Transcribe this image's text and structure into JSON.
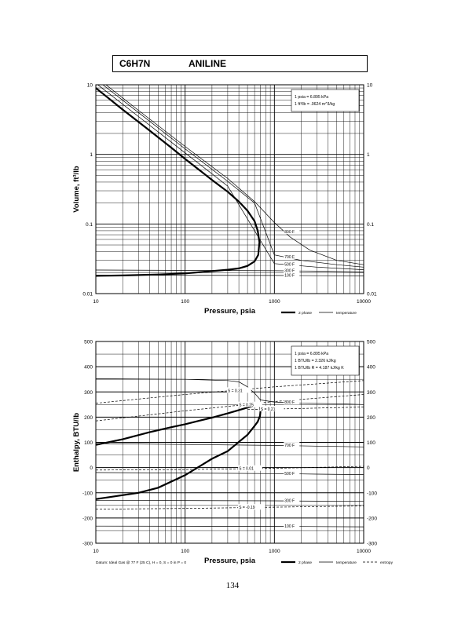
{
  "header": {
    "formula": "C6H7N",
    "name": "ANILINE"
  },
  "page_number": "134",
  "chart_data": [
    {
      "type": "line",
      "xscale": "log",
      "yscale": "log",
      "xlim": [
        10,
        10000
      ],
      "ylim": [
        0.01,
        10
      ],
      "xlabel": "Pressure,  psia",
      "ylabel": "Volume, ft^3/lb",
      "x_ticks": [
        "10",
        "100",
        "1000",
        "10000"
      ],
      "y_ticks": [
        "0.01",
        "0.1",
        "1",
        "10"
      ],
      "grid": true,
      "info_box": [
        "1 psia  =  6.895 kPa",
        "1 ft^3/lb  =  .0624 m^3/kg"
      ],
      "legend": {
        "two_phase": "2 phase",
        "temperature": "temperature"
      },
      "two_phase_curve": {
        "name": "2 phase",
        "x": [
          10,
          20,
          40,
          70,
          100,
          200,
          300,
          400,
          500,
          600,
          650,
          680,
          660,
          600,
          500,
          400,
          300,
          200,
          100,
          50,
          20,
          10
        ],
        "y": [
          9,
          4.4,
          2.2,
          1.25,
          0.86,
          0.43,
          0.29,
          0.21,
          0.155,
          0.11,
          0.08,
          0.055,
          0.036,
          0.029,
          0.025,
          0.023,
          0.022,
          0.021,
          0.0195,
          0.0188,
          0.0182,
          0.018
        ]
      },
      "temperature_curves": [
        {
          "label": "800 F",
          "x": [
            10,
            30,
            100,
            300,
            600,
            1000,
            1500,
            2500,
            5000,
            10000
          ],
          "y": [
            13,
            4.3,
            1.3,
            0.45,
            0.21,
            0.105,
            0.065,
            0.042,
            0.03,
            0.026
          ]
        },
        {
          "label": "700 F",
          "x": [
            10,
            30,
            100,
            300,
            600,
            1000,
            2000,
            5000,
            10000
          ],
          "y": [
            12,
            4,
            1.2,
            0.41,
            0.2,
            0.036,
            0.03,
            0.026,
            0.024
          ]
        },
        {
          "label": "500 F",
          "x": [
            10,
            30,
            100,
            300,
            1000,
            3000,
            10000
          ],
          "y": [
            10.5,
            3.5,
            1.05,
            0.35,
            0.027,
            0.024,
            0.022
          ]
        },
        {
          "label": "300 F",
          "x": [
            10,
            1000,
            3000,
            10000
          ],
          "y": [
            0.0218,
            0.0213,
            0.021,
            0.0205
          ]
        },
        {
          "label": "100 F",
          "x": [
            10,
            1000,
            3000,
            10000
          ],
          "y": [
            0.0184,
            0.0182,
            0.0181,
            0.018
          ]
        }
      ]
    },
    {
      "type": "line",
      "xscale": "log",
      "yscale": "linear",
      "xlim": [
        10,
        10000
      ],
      "ylim": [
        -300,
        500
      ],
      "xlabel": "Pressure,  psia",
      "ylabel": "Enthalpy, BTU/lb",
      "x_ticks": [
        "10",
        "100",
        "1000",
        "10000"
      ],
      "y_ticks": [
        "-300",
        "-200",
        "-100",
        "0",
        "100",
        "200",
        "300",
        "400",
        "500"
      ],
      "grid": true,
      "info_box": [
        "1 psia  =  6.895 kPa",
        "1 BTU/lb  =  2.326 kJ/kg",
        "1 BTU/lb R  =  4.187 kJ/kg K"
      ],
      "datum_note": "Datum: Ideal Gas @ 77 F (25 C),  H = 0,  S = 0 in P = 0",
      "legend": {
        "two_phase": "2 phase",
        "temperature": "temperature",
        "entropy": "entropy"
      },
      "two_phase_curve": {
        "name": "2 phase",
        "x": [
          10,
          20,
          40,
          70,
          100,
          200,
          300,
          400,
          500,
          600,
          650,
          690,
          700,
          690,
          650,
          600,
          500,
          300,
          200,
          100,
          50,
          30,
          10
        ],
        "y": [
          90,
          112,
          140,
          160,
          172,
          198,
          215,
          228,
          238,
          244,
          245,
          242,
          225,
          205,
          182,
          165,
          130,
          65,
          35,
          -30,
          -80,
          -100,
          -125
        ]
      },
      "temperature_curves": [
        {
          "label": "800 F",
          "x": [
            10,
            100,
            300,
            400,
            500,
            600,
            700,
            1000,
            2000,
            5000,
            10000
          ],
          "y": [
            352,
            350,
            345,
            340,
            320,
            295,
            268,
            260,
            255,
            253,
            250
          ]
        },
        {
          "label": "700 F",
          "x": [
            10,
            1000,
            3000,
            10000
          ],
          "y": [
            95,
            88,
            85,
            82
          ]
        },
        {
          "label": "500 F",
          "x": [
            10,
            1000,
            3000,
            10000
          ],
          "y": [
            -20,
            -24,
            -26,
            -28
          ]
        },
        {
          "label": "300 F",
          "x": [
            10,
            1000,
            3000,
            10000
          ],
          "y": [
            -130,
            -132,
            -133,
            -134
          ]
        },
        {
          "label": "100 F",
          "x": [
            10,
            1000,
            3000,
            10000
          ],
          "y": [
            -232,
            -233,
            -234,
            -235
          ]
        }
      ],
      "entropy_curves": [
        {
          "label": "S = 0.31",
          "x": [
            10,
            100,
            1000,
            10000
          ],
          "y": [
            255,
            290,
            320,
            345
          ]
        },
        {
          "label": "S = 0.25",
          "x": [
            10,
            100,
            1000,
            10000
          ],
          "y": [
            185,
            225,
            262,
            290
          ]
        },
        {
          "label": "S = 0.21",
          "x": [
            500,
            1000,
            10000
          ],
          "y": [
            230,
            232,
            240
          ]
        },
        {
          "label": "S = 0.01",
          "x": [
            10,
            100,
            1000,
            10000
          ],
          "y": [
            -10,
            -8,
            -3,
            5
          ]
        },
        {
          "label": "S = -0.19",
          "x": [
            10,
            100,
            1000,
            10000
          ],
          "y": [
            -165,
            -162,
            -157,
            -152
          ]
        }
      ]
    }
  ]
}
